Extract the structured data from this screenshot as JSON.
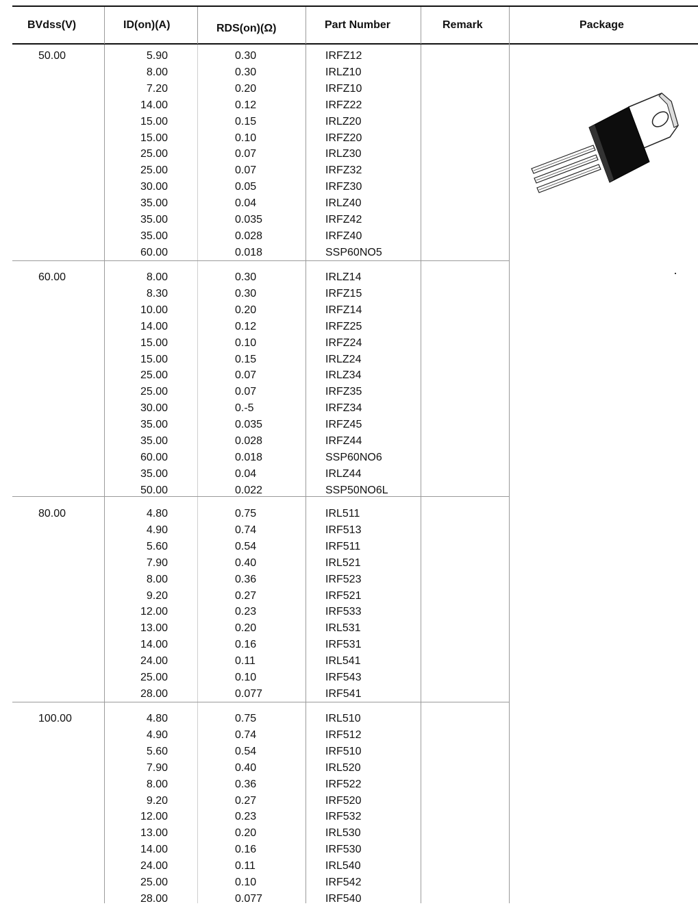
{
  "headers": {
    "bvdss": "BVdss(V)",
    "id": "ID(on)(A)",
    "rds": "RDS(on)(Ω)",
    "part": "Part Number",
    "remark": "Remark",
    "package": "Package"
  },
  "groups": [
    {
      "bvdss": "50.00",
      "rows": [
        {
          "id": "5.90",
          "rds": "0.30",
          "part": "IRFZ12"
        },
        {
          "id": "8.00",
          "rds": "0.30",
          "part": "IRLZ10"
        },
        {
          "id": "7.20",
          "rds": "0.20",
          "part": "IRFZ10"
        },
        {
          "id": "14.00",
          "rds": "0.12",
          "part": "IRFZ22"
        },
        {
          "id": "15.00",
          "rds": "0.15",
          "part": "IRLZ20"
        },
        {
          "id": "15.00",
          "rds": "0.10",
          "part": "IRFZ20"
        },
        {
          "id": "25.00",
          "rds": "0.07",
          "part": "IRLZ30"
        },
        {
          "id": "25.00",
          "rds": "0.07",
          "part": "IRFZ32"
        },
        {
          "id": "30.00",
          "rds": "0.05",
          "part": "IRFZ30"
        },
        {
          "id": "35.00",
          "rds": "0.04",
          "part": "IRLZ40"
        },
        {
          "id": "35.00",
          "rds": "0.035",
          "part": "IRFZ42"
        },
        {
          "id": "35.00",
          "rds": "0.028",
          "part": "IRFZ40"
        },
        {
          "id": "60.00",
          "rds": "0.018",
          "part": "SSP60NO5"
        }
      ]
    },
    {
      "bvdss": "60.00",
      "rows": [
        {
          "id": "8.00",
          "rds": "0.30",
          "part": "IRLZ14"
        },
        {
          "id": "8.30",
          "rds": "0.30",
          "part": "IRFZ15"
        },
        {
          "id": "10.00",
          "rds": "0.20",
          "part": "IRFZ14"
        },
        {
          "id": "14.00",
          "rds": "0.12",
          "part": "IRFZ25"
        },
        {
          "id": "15.00",
          "rds": "0.10",
          "part": "IRFZ24"
        },
        {
          "id": "15.00",
          "rds": "0.15",
          "part": "IRLZ24"
        },
        {
          "id": "25.00",
          "rds": "0.07",
          "part": "IRLZ34"
        },
        {
          "id": "25.00",
          "rds": "0.07",
          "part": "IRFZ35"
        },
        {
          "id": "30.00",
          "rds": "0.-5",
          "part": "IRFZ34"
        },
        {
          "id": "35.00",
          "rds": "0.035",
          "part": "IRFZ45"
        },
        {
          "id": "35.00",
          "rds": "0.028",
          "part": "IRFZ44"
        },
        {
          "id": "60.00",
          "rds": "0.018",
          "part": "SSP60NO6"
        },
        {
          "id": "35.00",
          "rds": "0.04",
          "part": "IRLZ44"
        },
        {
          "id": "50.00",
          "rds": "0.022",
          "part": "SSP50NO6L"
        }
      ]
    },
    {
      "bvdss": "80.00",
      "rows": [
        {
          "id": "4.80",
          "rds": "0.75",
          "part": "IRL511"
        },
        {
          "id": "4.90",
          "rds": "0.74",
          "part": "IRF513"
        },
        {
          "id": "5.60",
          "rds": "0.54",
          "part": "IRF511"
        },
        {
          "id": "7.90",
          "rds": "0.40",
          "part": "IRL521"
        },
        {
          "id": "8.00",
          "rds": "0.36",
          "part": "IRF523"
        },
        {
          "id": "9.20",
          "rds": "0.27",
          "part": "IRF521"
        },
        {
          "id": "12.00",
          "rds": "0.23",
          "part": "IRF533"
        },
        {
          "id": "13.00",
          "rds": "0.20",
          "part": "IRL531"
        },
        {
          "id": "14.00",
          "rds": "0.16",
          "part": "IRF531"
        },
        {
          "id": "24.00",
          "rds": "0.11",
          "part": "IRL541"
        },
        {
          "id": "25.00",
          "rds": "0.10",
          "part": "IRF543"
        },
        {
          "id": "28.00",
          "rds": "0.077",
          "part": "IRF541"
        }
      ]
    },
    {
      "bvdss": "100.00",
      "rows": [
        {
          "id": "4.80",
          "rds": "0.75",
          "part": "IRL510"
        },
        {
          "id": "4.90",
          "rds": "0.74",
          "part": "IRF512"
        },
        {
          "id": "5.60",
          "rds": "0.54",
          "part": "IRF510"
        },
        {
          "id": "7.90",
          "rds": "0.40",
          "part": "IRL520"
        },
        {
          "id": "8.00",
          "rds": "0.36",
          "part": "IRF522"
        },
        {
          "id": "9.20",
          "rds": "0.27",
          "part": "IRF520"
        },
        {
          "id": "12.00",
          "rds": "0.23",
          "part": "IRF532"
        },
        {
          "id": "13.00",
          "rds": "0.20",
          "part": "IRL530"
        },
        {
          "id": "14.00",
          "rds": "0.16",
          "part": "IRF530"
        },
        {
          "id": "24.00",
          "rds": "0.11",
          "part": "IRL540"
        },
        {
          "id": "25.00",
          "rds": "0.10",
          "part": "IRF542"
        },
        {
          "id": "28.00",
          "rds": "0.077",
          "part": "IRF540"
        }
      ]
    }
  ],
  "package_icon": "to-220-transistor-icon"
}
